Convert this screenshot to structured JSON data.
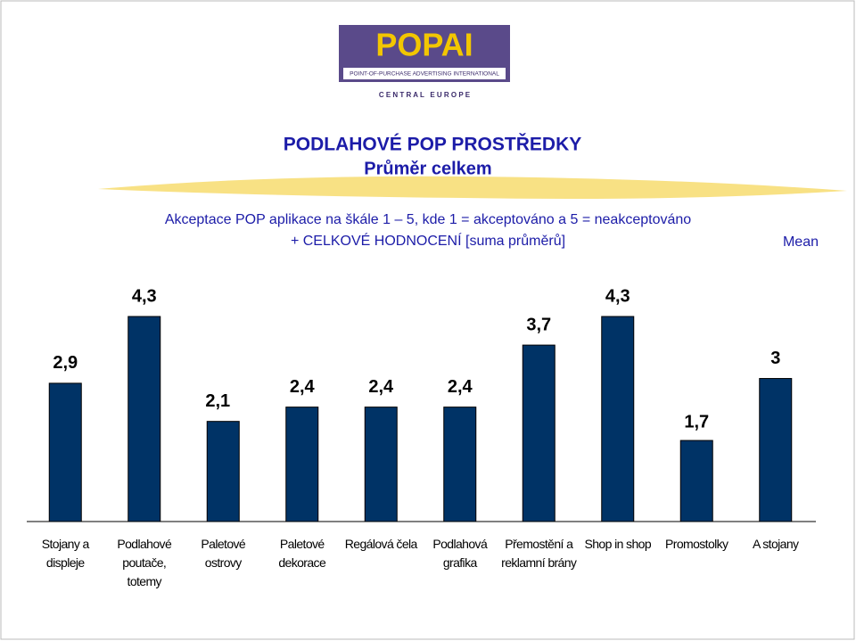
{
  "logo": {
    "name": "POPAI",
    "tagline": "POINT-OF-PURCHASE ADVERTISING INTERNATIONAL",
    "region": "C E N T R A L   E U R O P E"
  },
  "chart_data": {
    "type": "bar",
    "title": "PODLAHOVÉ POP PROSTŘEDKY",
    "subtitle": "Průměr celkem",
    "description": [
      "Akceptace POP aplikace na škále 1 – 5, kde 1 = akceptováno a 5 = neakceptováno",
      "+ CELKOVÉ HODNOCENÍ [suma průměrů]"
    ],
    "legend": "Mean",
    "categories": [
      "Stojany a displeje",
      "Podlahové poutače, totemy",
      "Paletové ostrovy",
      "Paletové dekorace",
      "Regálová čela",
      "Podlahová grafika",
      "Přemostění a reklamní brány",
      "Shop in shop",
      "Promostolky",
      "A stojany"
    ],
    "values": [
      2.9,
      4.3,
      2.1,
      2.4,
      2.4,
      2.4,
      3.7,
      4.3,
      1.7,
      3
    ],
    "value_labels": [
      "2,9",
      "4,3",
      "2,1",
      "2,4",
      "2,4",
      "2,4",
      "3,7",
      "4,3",
      "1,7",
      "3"
    ],
    "color": "#003366"
  }
}
